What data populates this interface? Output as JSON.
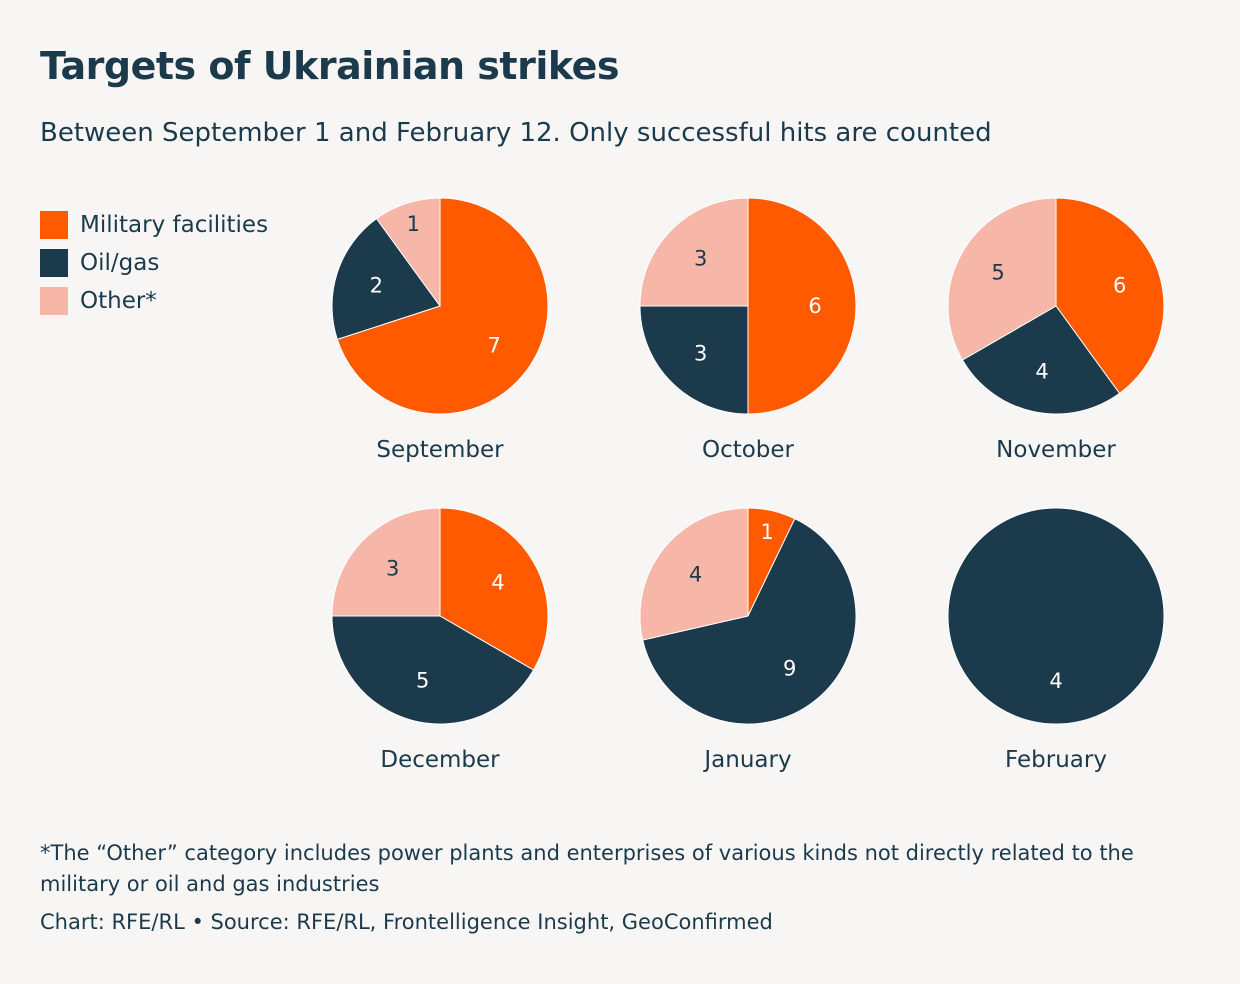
{
  "title": "Targets of Ukrainian strikes",
  "subtitle": "Between September 1 and February 12. Only successful hits are counted",
  "colors": {
    "military": "#ff5a00",
    "oilgas": "#1b3a4b",
    "other": "#f6b7a8",
    "text": "#1b3a4b",
    "background": "#f8f6f5"
  },
  "legend": [
    {
      "label": "Military facilities",
      "color": "#ff5a00"
    },
    {
      "label": "Oil/gas",
      "color": "#1b3a4b"
    },
    {
      "label": "Other*",
      "color": "#f6b7a8"
    }
  ],
  "chart_data": {
    "type": "pie",
    "title": "Targets of Ukrainian strikes",
    "subtitle": "Between September 1 and February 12. Only successful hits are counted",
    "series_order": [
      "Military facilities",
      "Oil/gas",
      "Other*"
    ],
    "slice_colors": [
      "#ff5a00",
      "#1b3a4b",
      "#f6b7a8"
    ],
    "label_colors": [
      "#ffffff",
      "#ffffff",
      "#1b3a4b"
    ],
    "pies": [
      {
        "month": "September",
        "values": [
          7,
          2,
          1
        ]
      },
      {
        "month": "October",
        "values": [
          6,
          3,
          3
        ]
      },
      {
        "month": "November",
        "values": [
          6,
          4,
          5
        ]
      },
      {
        "month": "December",
        "values": [
          4,
          5,
          3
        ]
      },
      {
        "month": "January",
        "values": [
          1,
          9,
          4
        ]
      },
      {
        "month": "February",
        "values": [
          0,
          4,
          0
        ]
      }
    ]
  },
  "footnote": "*The “Other” category includes power plants and enterprises of various kinds not directly related to the military or oil and gas industries",
  "credit": "Chart: RFE/RL • Source: RFE/RL, Frontelligence Insight, GeoConfirmed"
}
